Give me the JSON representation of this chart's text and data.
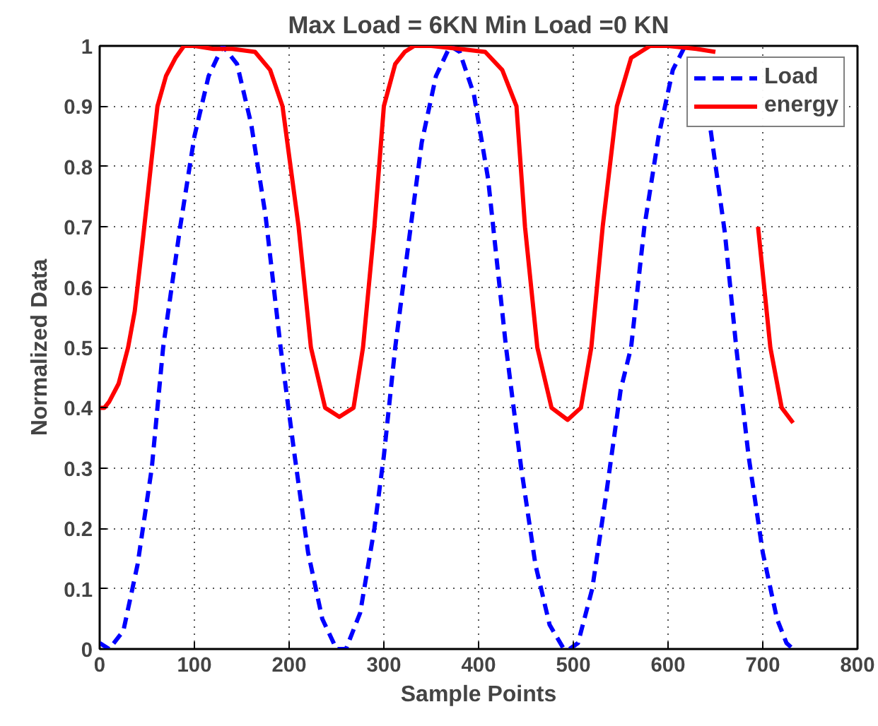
{
  "chart_data": {
    "type": "line",
    "title": "Max Load = 6KN Min Load =0 KN",
    "xlabel": "Sample Points",
    "ylabel": "Normalized Data",
    "xlim": [
      0,
      800
    ],
    "ylim": [
      0,
      1
    ],
    "xticks": [
      0,
      100,
      200,
      300,
      400,
      500,
      600,
      700,
      800
    ],
    "yticks": [
      0,
      0.1,
      0.2,
      0.3,
      0.4,
      0.5,
      0.6,
      0.7,
      0.8,
      0.9,
      1
    ],
    "grid": true,
    "legend": "top right",
    "series": [
      {
        "name": "Load",
        "color": "#0000ff",
        "line_style": "dashed",
        "x": [
          0,
          10,
          25,
          40,
          55,
          67,
          85,
          100,
          115,
          130,
          145,
          160,
          175,
          191,
          205,
          220,
          235,
          250,
          260,
          275,
          290,
          300,
          312,
          325,
          340,
          355,
          370,
          380,
          395,
          410,
          429,
          445,
          460,
          475,
          490,
          496,
          505,
          520,
          535,
          550,
          561,
          575,
          590,
          605,
          618,
          630,
          645,
          660,
          672,
          685,
          700,
          715,
          725,
          732
        ],
        "values": [
          0.01,
          0,
          0.03,
          0.14,
          0.3,
          0.5,
          0.7,
          0.85,
          0.95,
          1.0,
          0.97,
          0.87,
          0.72,
          0.5,
          0.33,
          0.16,
          0.05,
          0,
          0,
          0.06,
          0.2,
          0.32,
          0.5,
          0.66,
          0.84,
          0.95,
          1.0,
          0.99,
          0.92,
          0.78,
          0.5,
          0.3,
          0.14,
          0.04,
          0.0,
          0,
          0.01,
          0.1,
          0.26,
          0.43,
          0.5,
          0.7,
          0.85,
          0.96,
          1.0,
          null,
          0.86,
          0.69,
          0.5,
          0.32,
          0.16,
          0.05,
          0.01,
          0
        ]
      },
      {
        "name": "energy",
        "color": "#ff0000",
        "line_style": "solid",
        "x": [
          0,
          5,
          10,
          20,
          30,
          37,
          45,
          54,
          61,
          70,
          80,
          89,
          100,
          120,
          140,
          164,
          180,
          193,
          210,
          223,
          238,
          253,
          268,
          278,
          290,
          300,
          312,
          322,
          332,
          350,
          380,
          407,
          425,
          440,
          449,
          462,
          477,
          494,
          508,
          519,
          531,
          546,
          561,
          581,
          600,
          630,
          650,
          665,
          685,
          695,
          708,
          720,
          732
        ],
        "values": [
          0.4,
          0.4,
          0.41,
          0.44,
          0.5,
          0.56,
          0.67,
          0.8,
          0.9,
          0.95,
          0.98,
          1.0,
          1.0,
          0.995,
          0.995,
          0.99,
          0.96,
          0.9,
          0.7,
          0.5,
          0.4,
          0.385,
          0.4,
          0.5,
          0.7,
          0.9,
          0.97,
          0.99,
          1.0,
          1.0,
          0.995,
          0.99,
          0.96,
          0.9,
          0.7,
          0.5,
          0.4,
          0.38,
          0.4,
          0.5,
          0.7,
          0.9,
          0.98,
          1.0,
          1.0,
          0.995,
          0.99,
          null,
          null,
          0.7,
          0.5,
          0.4,
          0.375
        ]
      }
    ]
  }
}
